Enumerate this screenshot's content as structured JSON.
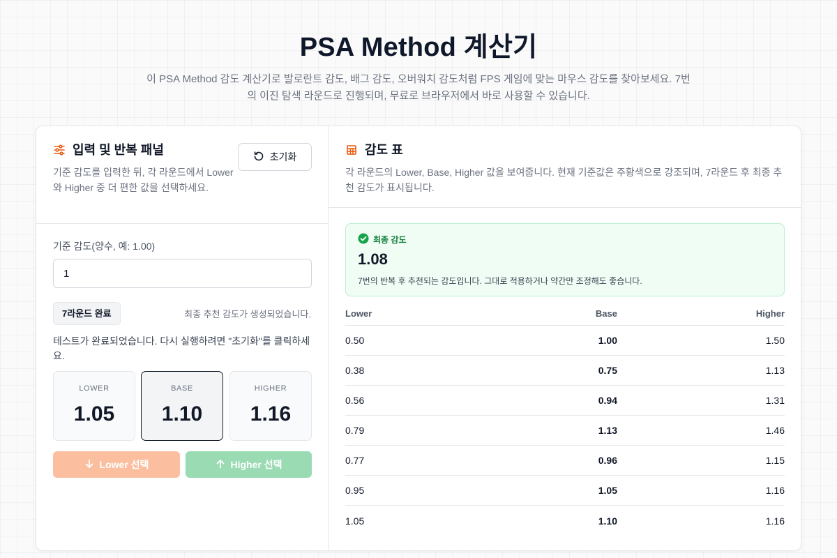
{
  "hero": {
    "title": "PSA Method 계산기",
    "description": "이 PSA Method 감도 계산기로 발로란트 감도, 배그 감도, 오버워치 감도처럼 FPS 게임에 맞는 마우스 감도를 찾아보세요. 7번의 이진 탐색 라운드로 진행되며, 무료로 브라우저에서 바로 사용할 수 있습니다."
  },
  "left_panel": {
    "icon": "sliders-icon",
    "title": "입력 및 반복 패널",
    "description": "기준 감도를 입력한 뒤, 각 라운드에서 Lower와 Higher 중 더 편한 값을 선택하세요.",
    "reset_label": "초기화",
    "input_label": "기준 감도(양수, 예: 1.00)",
    "input_value": "1",
    "round_badge": "7라운드 완료",
    "round_status": "최종 추천 감도가 생성되었습니다.",
    "message": "테스트가 완료되었습니다. 다시 실행하려면 \"초기화\"를 클릭하세요.",
    "values": {
      "lower_label": "LOWER",
      "lower": "1.05",
      "base_label": "BASE",
      "base": "1.10",
      "higher_label": "HIGHER",
      "higher": "1.16"
    },
    "lower_button": "Lower 선택",
    "higher_button": "Higher 선택",
    "colors": {
      "lower_button": "#fbbfa0",
      "higher_button": "#9adbb3"
    }
  },
  "right_panel": {
    "icon": "table-icon",
    "title": "감도 표",
    "description": "각 라운드의 Lower, Base, Higher 값을 보여줍니다. 현재 기준값은 주황색으로 강조되며, 7라운드 후 최종 추천 감도가 표시됩니다.",
    "final": {
      "label": "최종 감도",
      "value": "1.08",
      "note": "7번의 반복 후 추천되는 감도입니다. 그대로 적용하거나 약간만 조정해도 좋습니다."
    },
    "table": {
      "headers": [
        "Lower",
        "Base",
        "Higher"
      ],
      "rows": [
        [
          "0.50",
          "1.00",
          "1.50"
        ],
        [
          "0.38",
          "0.75",
          "1.13"
        ],
        [
          "0.56",
          "0.94",
          "1.31"
        ],
        [
          "0.79",
          "1.13",
          "1.46"
        ],
        [
          "0.77",
          "0.96",
          "1.15"
        ],
        [
          "0.95",
          "1.05",
          "1.16"
        ],
        [
          "1.05",
          "1.10",
          "1.16"
        ]
      ]
    },
    "colors": {
      "accent": "#ea580c",
      "success": "#16a34a"
    }
  }
}
